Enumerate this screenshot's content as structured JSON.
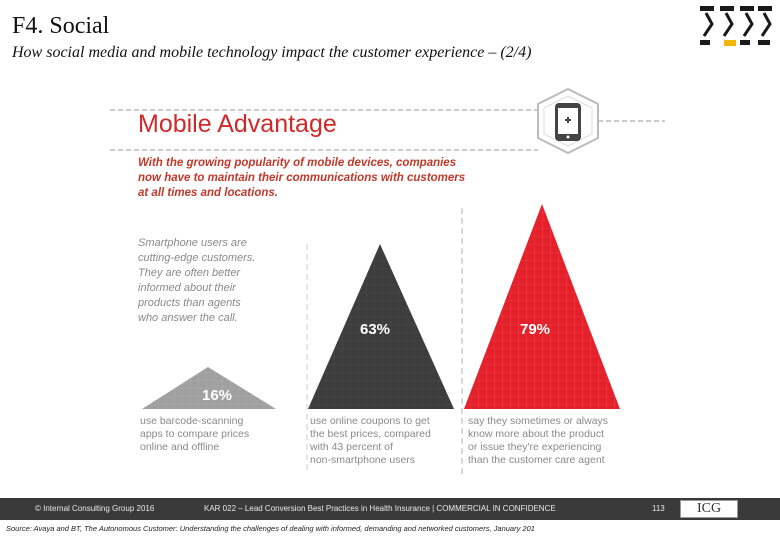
{
  "slide": {
    "title": "F4. Social",
    "subtitle": "How social media and mobile technology impact the customer experience – (2/4)"
  },
  "infographic": {
    "heading": "Mobile Advantage",
    "intro_lines": [
      "With the growing popularity of mobile devices, companies",
      "now have to maintain their communications with customers",
      "at all times and locations."
    ],
    "side_note_lines": [
      "Smartphone users are",
      "cutting-edge customers.",
      "They are often better",
      "informed about their",
      "products than agents",
      "who answer the call."
    ],
    "icon": "smartphone-plus-icon",
    "stats": [
      {
        "value": "16%",
        "color": "#9a9a9a",
        "caption_lines": [
          "use barcode-scanning",
          "apps to compare prices",
          "online and offline"
        ]
      },
      {
        "value": "63%",
        "color": "#3d3d3d",
        "caption_lines": [
          "use online coupons to get",
          "the best prices, compared",
          "with 43 percent of",
          "non-smartphone users"
        ]
      },
      {
        "value": "79%",
        "color": "#e4202a",
        "caption_lines": [
          "say they sometimes or always",
          "know more about the product",
          "or issue they're experiencing",
          "than the customer care agent"
        ]
      }
    ],
    "colors": {
      "accent_red": "#e4202a",
      "heading_red": "#cf2a2a",
      "intro_red": "#c0392b",
      "gray_text": "#8a8a8a"
    }
  },
  "footer": {
    "copyright": "© Internal Consulting Group 2016",
    "project": "KAR 022 – Lead Conversion Best Practices in Health Insurance | COMMERCIAL IN CONFIDENCE",
    "page": "113",
    "logo_text": "ICG"
  },
  "source": "Source: Avaya and BT, The Autonomous Customer: Understanding the challenges of dealing with informed, demanding and networked customers, January 201"
}
